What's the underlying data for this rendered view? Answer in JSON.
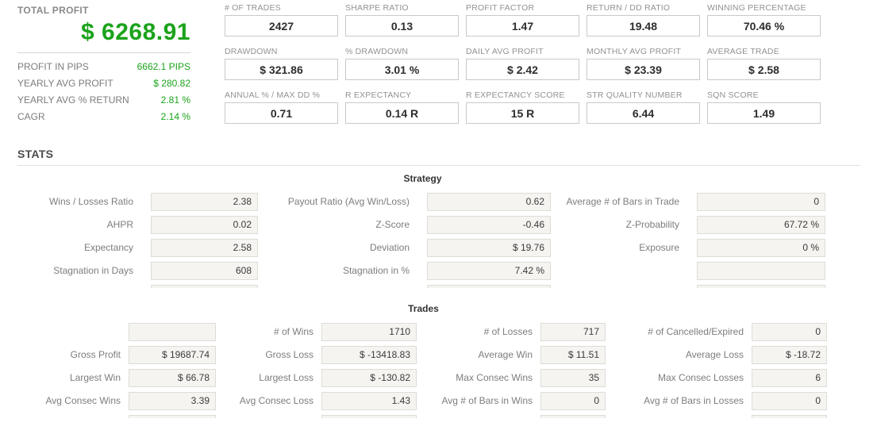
{
  "summary": {
    "title": "TOTAL PROFIT",
    "total_profit": "$ 6268.91",
    "rows": [
      {
        "label": "PROFIT IN PIPS",
        "value": "6662.1 PIPS"
      },
      {
        "label": "YEARLY AVG PROFIT",
        "value": "$ 280.82"
      },
      {
        "label": "YEARLY AVG % RETURN",
        "value": "2.81 %"
      },
      {
        "label": "CAGR",
        "value": "2.14 %"
      }
    ]
  },
  "top_metrics": [
    {
      "label": "# OF TRADES",
      "value": "2427"
    },
    {
      "label": "SHARPE RATIO",
      "value": "0.13"
    },
    {
      "label": "PROFIT FACTOR",
      "value": "1.47"
    },
    {
      "label": "RETURN / DD RATIO",
      "value": "19.48"
    },
    {
      "label": "WINNING PERCENTAGE",
      "value": "70.46 %"
    },
    {
      "label": "DRAWDOWN",
      "value": "$ 321.86"
    },
    {
      "label": "% DRAWDOWN",
      "value": "3.01 %"
    },
    {
      "label": "DAILY AVG PROFIT",
      "value": "$ 2.42"
    },
    {
      "label": "MONTHLY AVG PROFIT",
      "value": "$ 23.39"
    },
    {
      "label": "AVERAGE TRADE",
      "value": "$ 2.58"
    },
    {
      "label": "ANNUAL % / MAX DD %",
      "value": "0.71"
    },
    {
      "label": "R EXPECTANCY",
      "value": "0.14 R"
    },
    {
      "label": "R EXPECTANCY SCORE",
      "value": "15 R"
    },
    {
      "label": "STR QUALITY NUMBER",
      "value": "6.44"
    },
    {
      "label": "SQN SCORE",
      "value": "1.49"
    }
  ],
  "stats_heading": "STATS",
  "strategy": {
    "heading": "Strategy",
    "rows": [
      {
        "c0": {
          "label": "Wins / Losses Ratio",
          "value": "2.38"
        },
        "c1": {
          "label": "Payout Ratio (Avg Win/Loss)",
          "value": "0.62"
        },
        "c2": {
          "label": "Average # of Bars in Trade",
          "value": "0"
        }
      },
      {
        "c0": {
          "label": "AHPR",
          "value": "0.02"
        },
        "c1": {
          "label": "Z-Score",
          "value": "-0.46"
        },
        "c2": {
          "label": "Z-Probability",
          "value": "67.72 %"
        }
      },
      {
        "c0": {
          "label": "Expectancy",
          "value": "2.58"
        },
        "c1": {
          "label": "Deviation",
          "value": "$ 19.76"
        },
        "c2": {
          "label": "Exposure",
          "value": "0 %"
        }
      },
      {
        "c0": {
          "label": "Stagnation in Days",
          "value": "608"
        },
        "c1": {
          "label": "Stagnation in %",
          "value": "7.42 %"
        },
        "c2": {
          "label": "",
          "value": ""
        }
      }
    ]
  },
  "trades": {
    "heading": "Trades",
    "rows": [
      {
        "c0": {
          "label": "",
          "value": ""
        },
        "c1": {
          "label": "# of Wins",
          "value": "1710"
        },
        "c2": {
          "label": "# of Losses",
          "value": "717"
        },
        "c3": {
          "label": "# of Cancelled/Expired",
          "value": "0"
        }
      },
      {
        "c0": {
          "label": "Gross Profit",
          "value": "$ 19687.74"
        },
        "c1": {
          "label": "Gross Loss",
          "value": "$ -13418.83"
        },
        "c2": {
          "label": "Average Win",
          "value": "$ 11.51"
        },
        "c3": {
          "label": "Average Loss",
          "value": "$ -18.72"
        }
      },
      {
        "c0": {
          "label": "Largest Win",
          "value": "$ 66.78"
        },
        "c1": {
          "label": "Largest Loss",
          "value": "$ -130.82"
        },
        "c2": {
          "label": "Max Consec Wins",
          "value": "35"
        },
        "c3": {
          "label": "Max Consec Losses",
          "value": "6"
        }
      },
      {
        "c0": {
          "label": "Avg Consec Wins",
          "value": "3.39"
        },
        "c1": {
          "label": "Avg Consec Loss",
          "value": "1.43"
        },
        "c2": {
          "label": "Avg # of Bars in Wins",
          "value": "0"
        },
        "c3": {
          "label": "Avg # of Bars in Losses",
          "value": "0"
        }
      }
    ]
  },
  "colors": {
    "profit_green": "#1ba31b",
    "label_gray": "#8a8a8a"
  }
}
